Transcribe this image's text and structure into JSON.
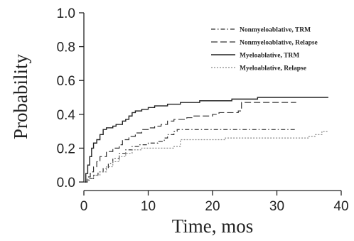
{
  "chart_data": {
    "type": "line",
    "step": true,
    "xlabel": "Time, mos",
    "ylabel": "Probability",
    "xlim": [
      0,
      40
    ],
    "ylim": [
      0,
      1.0
    ],
    "x_ticks": [
      0,
      10,
      20,
      30,
      40
    ],
    "y_ticks": [
      "0.0",
      "0.2",
      "0.4",
      "0.6",
      "0.8",
      "1.0"
    ],
    "grid": false,
    "legend_position": "top-right",
    "series": [
      {
        "name": "Nonmyeloablative, TRM",
        "color": "#333333",
        "style": "dashdot",
        "points": [
          [
            0,
            0
          ],
          [
            0.8,
            0.02
          ],
          [
            1.5,
            0.04
          ],
          [
            2.2,
            0.06
          ],
          [
            3,
            0.08
          ],
          [
            3.8,
            0.11
          ],
          [
            4.5,
            0.14
          ],
          [
            5.5,
            0.17
          ],
          [
            6.5,
            0.19
          ],
          [
            7.5,
            0.21
          ],
          [
            8.5,
            0.22
          ],
          [
            10,
            0.23
          ],
          [
            11.5,
            0.24
          ],
          [
            12.5,
            0.26
          ],
          [
            13,
            0.28
          ],
          [
            14,
            0.3
          ],
          [
            14.5,
            0.31
          ],
          [
            33,
            0.31
          ]
        ]
      },
      {
        "name": "Nonmyeloablative, Relapse",
        "color": "#333333",
        "style": "dashed",
        "points": [
          [
            0,
            0
          ],
          [
            0.5,
            0.03
          ],
          [
            1,
            0.06
          ],
          [
            1.5,
            0.09
          ],
          [
            2,
            0.12
          ],
          [
            2.5,
            0.15
          ],
          [
            3.5,
            0.18
          ],
          [
            4.5,
            0.2
          ],
          [
            5.5,
            0.22
          ],
          [
            6,
            0.25
          ],
          [
            7,
            0.27
          ],
          [
            8,
            0.29
          ],
          [
            9,
            0.31
          ],
          [
            10,
            0.32
          ],
          [
            11,
            0.33
          ],
          [
            12,
            0.34
          ],
          [
            13,
            0.36
          ],
          [
            14,
            0.37
          ],
          [
            16,
            0.38
          ],
          [
            17,
            0.39
          ],
          [
            20,
            0.4
          ],
          [
            21,
            0.41
          ],
          [
            24,
            0.42
          ],
          [
            24.5,
            0.47
          ],
          [
            33,
            0.47
          ]
        ]
      },
      {
        "name": "Myeloablative, TRM",
        "color": "#222222",
        "style": "solid",
        "points": [
          [
            0,
            0
          ],
          [
            0.3,
            0.05
          ],
          [
            0.6,
            0.1
          ],
          [
            0.9,
            0.15
          ],
          [
            1.2,
            0.2
          ],
          [
            1.5,
            0.23
          ],
          [
            2,
            0.25
          ],
          [
            2.5,
            0.28
          ],
          [
            3,
            0.31
          ],
          [
            3.5,
            0.32
          ],
          [
            4.5,
            0.33
          ],
          [
            5,
            0.34
          ],
          [
            6,
            0.36
          ],
          [
            6.5,
            0.37
          ],
          [
            7,
            0.39
          ],
          [
            7.5,
            0.41
          ],
          [
            8,
            0.42
          ],
          [
            9,
            0.43
          ],
          [
            10,
            0.44
          ],
          [
            11,
            0.45
          ],
          [
            13,
            0.46
          ],
          [
            15,
            0.47
          ],
          [
            18,
            0.48
          ],
          [
            21,
            0.48
          ],
          [
            23,
            0.49
          ],
          [
            26,
            0.49
          ],
          [
            27,
            0.5
          ],
          [
            38,
            0.5
          ]
        ]
      },
      {
        "name": "Myeloablative, Relapse",
        "color": "#888888",
        "style": "dotted",
        "points": [
          [
            0,
            0
          ],
          [
            0.7,
            0.02
          ],
          [
            1.5,
            0.04
          ],
          [
            2.5,
            0.06
          ],
          [
            3.5,
            0.09
          ],
          [
            4.5,
            0.12
          ],
          [
            5.5,
            0.15
          ],
          [
            6.5,
            0.17
          ],
          [
            7.5,
            0.19
          ],
          [
            9,
            0.2
          ],
          [
            11,
            0.2
          ],
          [
            14,
            0.21
          ],
          [
            15,
            0.25
          ],
          [
            20,
            0.25
          ],
          [
            22,
            0.26
          ],
          [
            31,
            0.26
          ],
          [
            35,
            0.27
          ],
          [
            36,
            0.28
          ],
          [
            37,
            0.3
          ],
          [
            38,
            0.3
          ]
        ]
      }
    ]
  }
}
